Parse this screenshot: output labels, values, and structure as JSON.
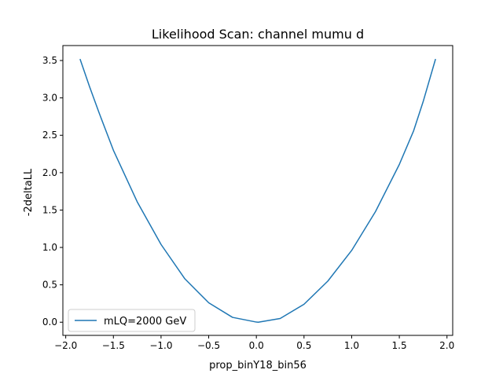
{
  "chart_data": {
    "type": "line",
    "title": "Likelihood Scan: channel mumu d",
    "xlabel": "prop_binY18_bin56",
    "ylabel": "-2deltaLL",
    "xlim": [
      -2.03,
      2.06
    ],
    "ylim": [
      -0.176,
      3.7
    ],
    "x_ticks": [
      -2.0,
      -1.5,
      -1.0,
      -0.5,
      0.0,
      0.5,
      1.0,
      1.5,
      2.0
    ],
    "x_tick_labels": [
      "−2.0",
      "−1.5",
      "−1.0",
      "−0.5",
      "0.0",
      "0.5",
      "1.0",
      "1.5",
      "2.0"
    ],
    "y_ticks": [
      0.0,
      0.5,
      1.0,
      1.5,
      2.0,
      2.5,
      3.0,
      3.5
    ],
    "y_tick_labels": [
      "0.0",
      "0.5",
      "1.0",
      "1.5",
      "2.0",
      "2.5",
      "3.0",
      "3.5"
    ],
    "grid": false,
    "legend_position": "lower-left",
    "series": [
      {
        "name": "mLQ=2000 GeV",
        "color": "#1f77b4",
        "x": [
          -1.85,
          -1.75,
          -1.65,
          -1.5,
          -1.25,
          -1.0,
          -0.75,
          -0.5,
          -0.25,
          0.0,
          0.02,
          0.25,
          0.5,
          0.75,
          1.0,
          1.25,
          1.5,
          1.65,
          1.75,
          1.88
        ],
        "y": [
          3.52,
          3.15,
          2.8,
          2.3,
          1.61,
          1.04,
          0.58,
          0.26,
          0.065,
          0.002,
          0.0,
          0.05,
          0.24,
          0.55,
          0.96,
          1.48,
          2.11,
          2.56,
          2.95,
          3.52
        ]
      }
    ]
  }
}
